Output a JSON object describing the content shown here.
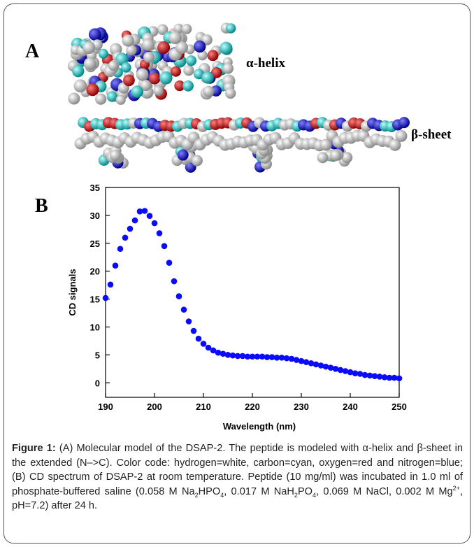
{
  "panels": {
    "a_label": "A",
    "b_label": "B",
    "helix_label": "α-helix",
    "sheet_label": "β-sheet"
  },
  "chart_data": {
    "type": "scatter",
    "x_label": "Wavelength (nm)",
    "y_label": "CD signals",
    "xlim": [
      190,
      250
    ],
    "xticks": [
      190,
      200,
      210,
      220,
      230,
      240,
      250
    ],
    "ylim": [
      -2.6,
      35
    ],
    "yticks": [
      0,
      5,
      10,
      15,
      20,
      25,
      30,
      35
    ],
    "color": "#0a0aff",
    "x": [
      190,
      191,
      192,
      193,
      194,
      195,
      196,
      197,
      198,
      199,
      200,
      201,
      202,
      203,
      204,
      205,
      206,
      207,
      208,
      209,
      210,
      211,
      212,
      213,
      214,
      215,
      216,
      217,
      218,
      219,
      220,
      221,
      222,
      223,
      224,
      225,
      226,
      227,
      228,
      229,
      230,
      231,
      232,
      233,
      234,
      235,
      236,
      237,
      238,
      239,
      240,
      241,
      242,
      243,
      244,
      245,
      246,
      247,
      248,
      249,
      250
    ],
    "values": [
      15.2,
      17.6,
      21.0,
      24.0,
      26.0,
      27.6,
      29.1,
      30.7,
      30.8,
      29.9,
      28.6,
      26.8,
      24.5,
      21.5,
      18.2,
      15.5,
      13.1,
      11.0,
      9.3,
      7.9,
      7.0,
      6.3,
      5.8,
      5.4,
      5.2,
      5.0,
      4.9,
      4.8,
      4.8,
      4.7,
      4.7,
      4.7,
      4.7,
      4.6,
      4.6,
      4.5,
      4.5,
      4.4,
      4.3,
      4.1,
      3.9,
      3.7,
      3.5,
      3.3,
      3.1,
      2.9,
      2.7,
      2.5,
      2.3,
      2.1,
      1.9,
      1.7,
      1.6,
      1.4,
      1.3,
      1.2,
      1.1,
      1.0,
      0.9,
      0.9,
      0.8
    ]
  },
  "caption": {
    "label": "Figure 1:",
    "parts": [
      {
        "text": " (A) Molecular model of the DSAP-2. The peptide is modeled with α-helix and β-sheet in the extended (N–>C). Color code: hydrogen=white, carbon=cyan, oxygen=red and nitrogen=blue; (B) CD spectrum of DSAP-2 at room temperature. Peptide (10 mg/ml) was incubated in 1.0 ml of phosphate-buffered saline (0.058 M Na"
      },
      {
        "text": "2",
        "style": "sub"
      },
      {
        "text": "HPO"
      },
      {
        "text": "4",
        "style": "sub"
      },
      {
        "text": ", 0.017 M NaH"
      },
      {
        "text": "2",
        "style": "sub"
      },
      {
        "text": "PO"
      },
      {
        "text": "4",
        "style": "sub"
      },
      {
        "text": ", 0.069 M NaCl, 0.002 M Mg"
      },
      {
        "text": "2+",
        "style": "sup"
      },
      {
        "text": ", pH=7.2) after 24 h."
      }
    ]
  }
}
